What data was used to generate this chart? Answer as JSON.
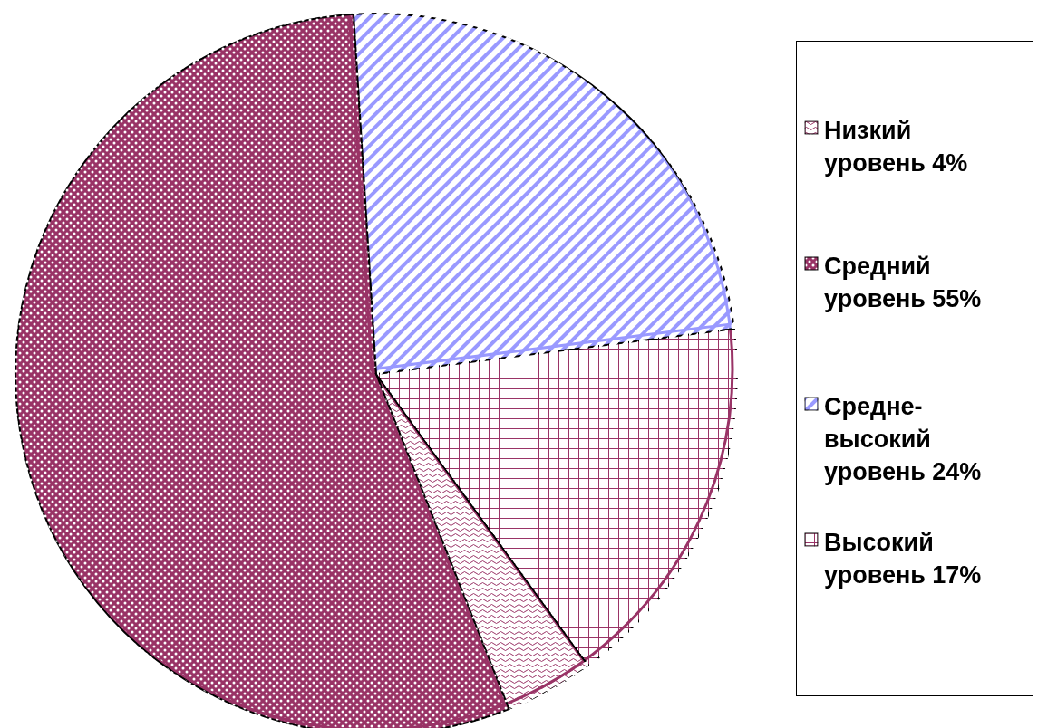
{
  "chart_data": {
    "type": "pie",
    "categories": [
      "Низкий уровень 4%",
      "Средний уровень 55%",
      "Средне-высокий уровень 24%",
      "Высокий уровень 17%"
    ],
    "values": [
      4,
      55,
      24,
      17
    ],
    "colors": [
      "#993366",
      "#993366",
      "#9999ff",
      "#993366"
    ],
    "legend": "right"
  }
}
